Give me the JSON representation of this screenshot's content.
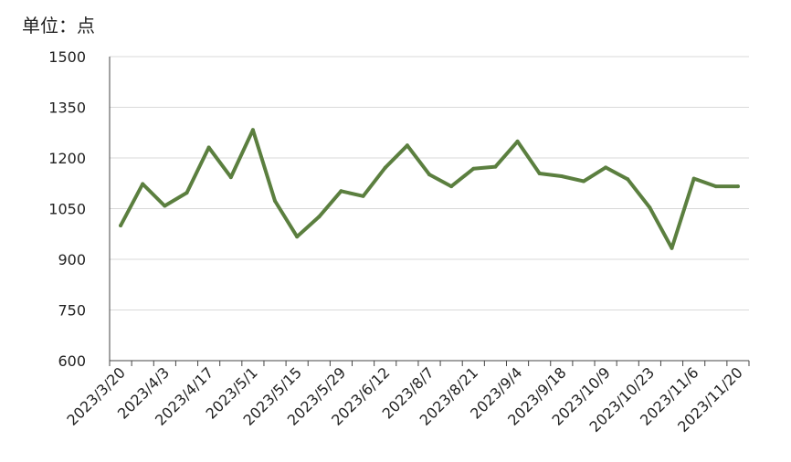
{
  "chart_data": {
    "type": "line",
    "unit_label": "单位：点",
    "ylim": [
      600,
      1500
    ],
    "y_ticks": [
      600,
      750,
      900,
      1050,
      1200,
      1350,
      1500
    ],
    "x_tick_labels": [
      "2023/3/20",
      "2023/4/3",
      "2023/4/17",
      "2023/5/1",
      "2023/5/15",
      "2023/5/29",
      "2023/6/12",
      "2023/8/7",
      "2023/8/21",
      "2023/9/4",
      "2023/9/18",
      "2023/10/9",
      "2023/10/23",
      "2023/11/6",
      "2023/11/20"
    ],
    "grid": "horizontal",
    "line_color": "#5b7f3f",
    "series": [
      {
        "values": [
          1000,
          1123,
          1058,
          1097,
          1231,
          1143,
          1283,
          1073,
          967,
          1026,
          1102,
          1087,
          1171,
          1237,
          1151,
          1116,
          1168,
          1174,
          1249,
          1154,
          1146,
          1131,
          1172,
          1137,
          1053,
          933,
          1139,
          1116,
          1116
        ]
      }
    ]
  }
}
